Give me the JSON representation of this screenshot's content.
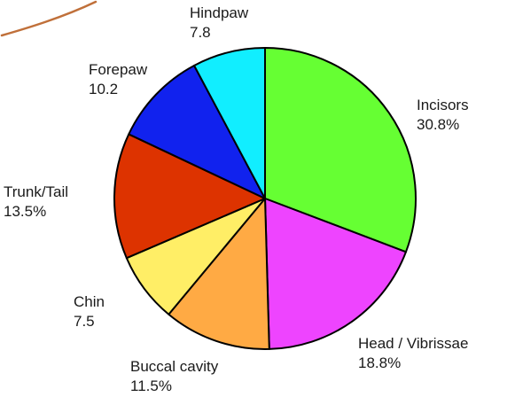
{
  "chart_data": {
    "type": "pie",
    "title": "",
    "start_angle_deg": 0,
    "direction": "clockwise",
    "slices": [
      {
        "label": "Incisors",
        "value": 30.8,
        "value_text": "30.8%",
        "color": "#66ff33"
      },
      {
        "label": "Head / Vibrissae",
        "value": 18.8,
        "value_text": "18.8%",
        "color": "#ee44ff"
      },
      {
        "label": "Buccal cavity",
        "value": 11.5,
        "value_text": "11.5%",
        "color": "#ffaa44"
      },
      {
        "label": "Chin",
        "value": 7.5,
        "value_text": "7.5",
        "color": "#ffee66"
      },
      {
        "label": "Trunk/Tail",
        "value": 13.5,
        "value_text": "13.5%",
        "color": "#dd3300"
      },
      {
        "label": "Forepaw",
        "value": 10.2,
        "value_text": "10.2",
        "color": "#1122ee"
      },
      {
        "label": "Hindpaw",
        "value": 7.8,
        "value_text": "7.8",
        "color": "#11eeff"
      }
    ]
  }
}
